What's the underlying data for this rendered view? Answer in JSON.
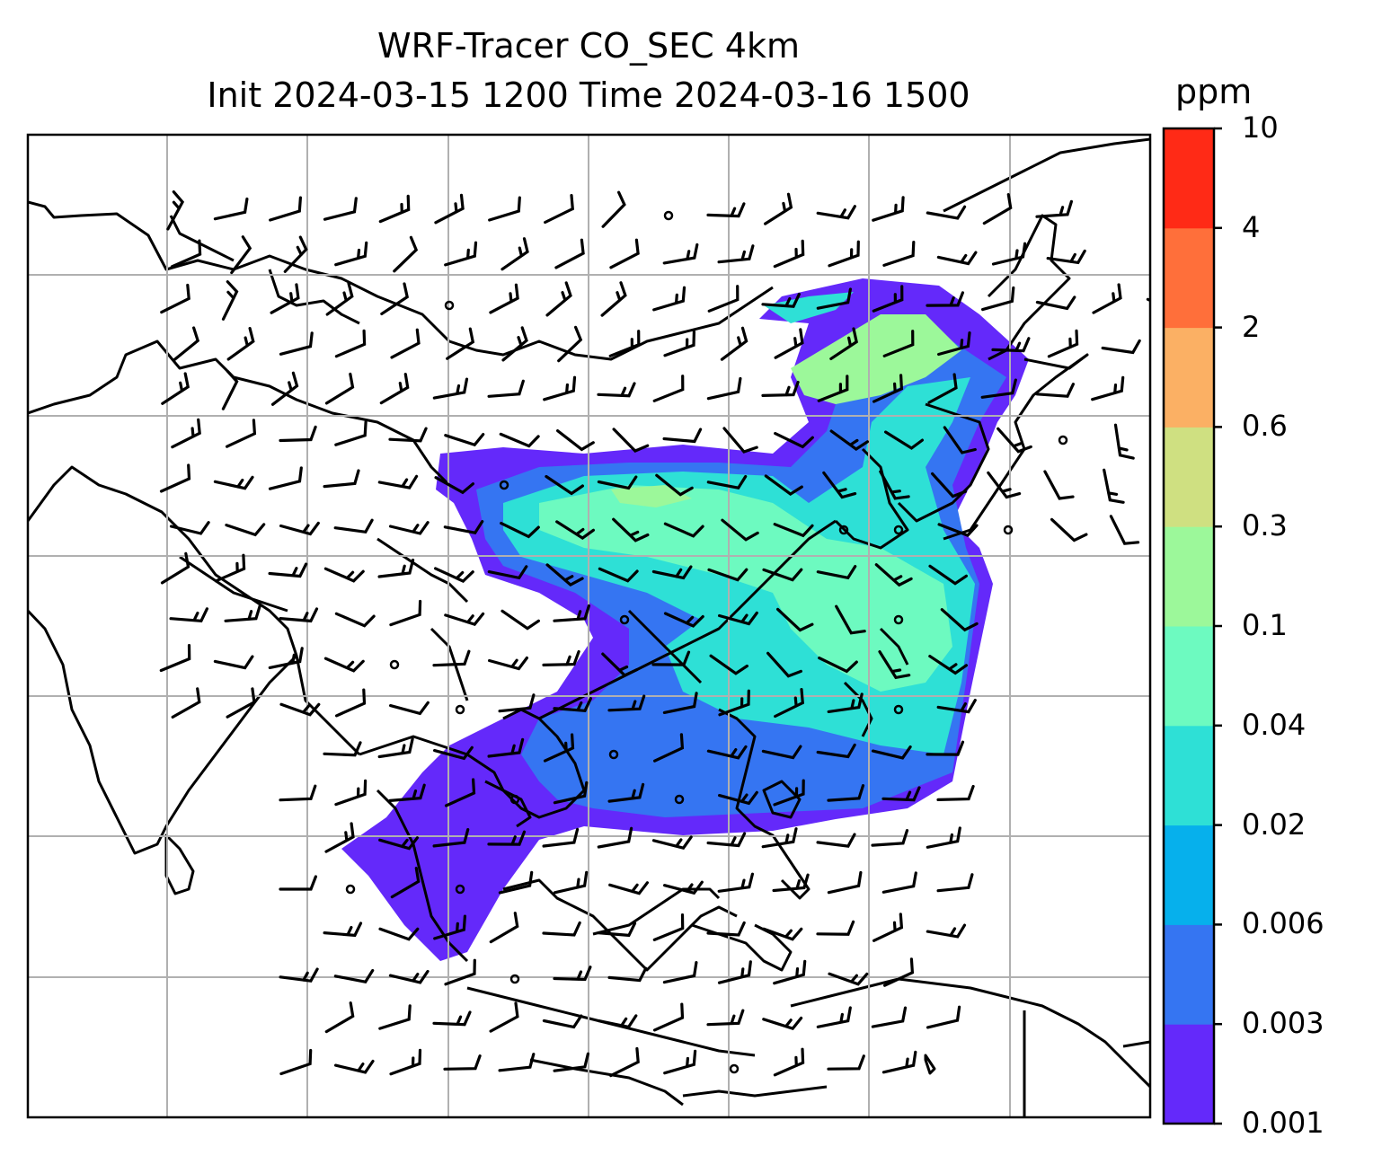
{
  "title": {
    "line1": "WRF-Tracer CO_SEC 4km",
    "line2": "Init 2024-03-15 1200 Time 2024-03-16 1500"
  },
  "colorbar": {
    "unit": "ppm",
    "levels": [
      "0.001",
      "0.003",
      "0.006",
      "0.02",
      "0.04",
      "0.1",
      "0.3",
      "0.6",
      "2",
      "4",
      "10"
    ],
    "colors": [
      "#6429fa",
      "#3575f2",
      "#06b0ec",
      "#2ee0d6",
      "#6dfac0",
      "#9cf89a",
      "#cfe081",
      "#fbb064",
      "#ff6f3a",
      "#ff2a16"
    ]
  },
  "map": {
    "projection": "lat-lon",
    "gridlines": true,
    "features": [
      "coastlines",
      "country-borders",
      "wind-barbs",
      "CO-tracer-contourf"
    ],
    "plume_levels": {
      "outer": "0.001",
      "mid": "0.003",
      "inner1": "0.02",
      "inner2": "0.04",
      "core": "0.1"
    }
  }
}
